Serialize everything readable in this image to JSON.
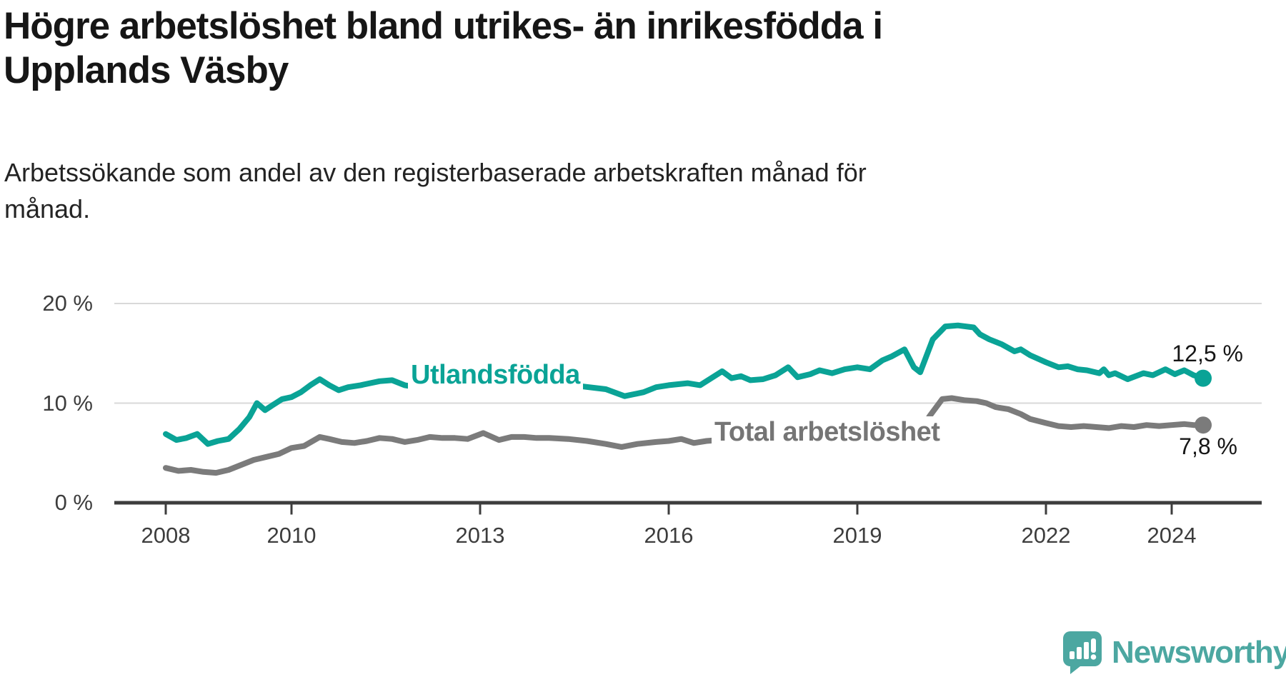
{
  "chart_data": {
    "type": "line",
    "title": "Högre arbetslöshet bland utrikes- än inrikesfödda i\nUpplands Väsby",
    "subtitle": "Arbetssökande som andel av den registerbaserade arbetskraften månad för\nmånad.",
    "grid": "horizontal",
    "legend_position": "inline-labels-on-lines",
    "x_axis": {
      "range": [
        2007.2,
        2025.4
      ],
      "ticks": [
        {
          "value": 2008,
          "label": "2008"
        },
        {
          "value": 2010,
          "label": "2010"
        },
        {
          "value": 2013,
          "label": "2013"
        },
        {
          "value": 2016,
          "label": "2016"
        },
        {
          "value": 2019,
          "label": "2019"
        },
        {
          "value": 2022,
          "label": "2022"
        },
        {
          "value": 2024,
          "label": "2024"
        }
      ]
    },
    "y_axis": {
      "unit": "%",
      "range": [
        0,
        22
      ],
      "gridlines": [
        10,
        20
      ],
      "ticks": [
        {
          "value": 20,
          "label": "20 %"
        },
        {
          "value": 10,
          "label": "10 %"
        },
        {
          "value": 0,
          "label": "0 %"
        }
      ]
    },
    "colors": {
      "axis": "#3d3d3d",
      "gridline": "#d9d9d9",
      "tick_text": "#3d3d3d"
    },
    "series": [
      {
        "id": "utlandsfodda",
        "name": "Utlandsfödda",
        "color": "#0aa396",
        "end_value": 12.5,
        "end_label": "12,5 %",
        "points": [
          [
            2008.0,
            6.9
          ],
          [
            2008.17,
            6.3
          ],
          [
            2008.33,
            6.5
          ],
          [
            2008.5,
            6.9
          ],
          [
            2008.67,
            5.9
          ],
          [
            2008.83,
            6.2
          ],
          [
            2009.0,
            6.4
          ],
          [
            2009.17,
            7.4
          ],
          [
            2009.33,
            8.6
          ],
          [
            2009.45,
            10.0
          ],
          [
            2009.58,
            9.3
          ],
          [
            2009.7,
            9.8
          ],
          [
            2009.85,
            10.4
          ],
          [
            2010.0,
            10.6
          ],
          [
            2010.15,
            11.1
          ],
          [
            2010.3,
            11.8
          ],
          [
            2010.45,
            12.4
          ],
          [
            2010.6,
            11.8
          ],
          [
            2010.75,
            11.3
          ],
          [
            2010.9,
            11.6
          ],
          [
            2011.1,
            11.8
          ],
          [
            2011.4,
            12.2
          ],
          [
            2011.6,
            12.3
          ],
          [
            2011.8,
            11.8
          ],
          [
            2012.0,
            11.6
          ],
          [
            2012.3,
            11.9
          ],
          [
            2012.6,
            12.1
          ],
          [
            2013.0,
            12.2
          ],
          [
            2013.4,
            12.4
          ],
          [
            2013.8,
            12.2
          ],
          [
            2014.2,
            12.0
          ],
          [
            2014.6,
            11.7
          ],
          [
            2015.0,
            11.4
          ],
          [
            2015.3,
            10.7
          ],
          [
            2015.6,
            11.1
          ],
          [
            2015.8,
            11.6
          ],
          [
            2016.0,
            11.8
          ],
          [
            2016.3,
            12.0
          ],
          [
            2016.5,
            11.8
          ],
          [
            2016.85,
            13.2
          ],
          [
            2017.0,
            12.5
          ],
          [
            2017.15,
            12.7
          ],
          [
            2017.3,
            12.3
          ],
          [
            2017.5,
            12.4
          ],
          [
            2017.7,
            12.8
          ],
          [
            2017.9,
            13.6
          ],
          [
            2018.05,
            12.6
          ],
          [
            2018.25,
            12.9
          ],
          [
            2018.4,
            13.3
          ],
          [
            2018.6,
            13.0
          ],
          [
            2018.8,
            13.4
          ],
          [
            2019.0,
            13.6
          ],
          [
            2019.2,
            13.4
          ],
          [
            2019.4,
            14.3
          ],
          [
            2019.55,
            14.7
          ],
          [
            2019.75,
            15.4
          ],
          [
            2019.9,
            13.6
          ],
          [
            2020.0,
            13.1
          ],
          [
            2020.2,
            16.4
          ],
          [
            2020.4,
            17.7
          ],
          [
            2020.6,
            17.8
          ],
          [
            2020.85,
            17.6
          ],
          [
            2020.95,
            16.9
          ],
          [
            2021.1,
            16.4
          ],
          [
            2021.3,
            15.9
          ],
          [
            2021.5,
            15.2
          ],
          [
            2021.6,
            15.4
          ],
          [
            2021.75,
            14.8
          ],
          [
            2022.0,
            14.1
          ],
          [
            2022.2,
            13.6
          ],
          [
            2022.35,
            13.7
          ],
          [
            2022.5,
            13.4
          ],
          [
            2022.65,
            13.3
          ],
          [
            2022.85,
            13.0
          ],
          [
            2022.92,
            13.4
          ],
          [
            2023.0,
            12.8
          ],
          [
            2023.1,
            13.0
          ],
          [
            2023.3,
            12.4
          ],
          [
            2023.55,
            13.0
          ],
          [
            2023.7,
            12.8
          ],
          [
            2023.9,
            13.4
          ],
          [
            2024.05,
            12.9
          ],
          [
            2024.2,
            13.3
          ],
          [
            2024.35,
            12.8
          ],
          [
            2024.5,
            12.5
          ]
        ]
      },
      {
        "id": "total",
        "name": "Total arbetslöshet",
        "color": "#7b7b7b",
        "end_value": 7.8,
        "end_label": "7,8 %",
        "points": [
          [
            2008.0,
            3.5
          ],
          [
            2008.2,
            3.2
          ],
          [
            2008.4,
            3.3
          ],
          [
            2008.6,
            3.1
          ],
          [
            2008.8,
            3.0
          ],
          [
            2009.0,
            3.3
          ],
          [
            2009.2,
            3.8
          ],
          [
            2009.4,
            4.3
          ],
          [
            2009.6,
            4.6
          ],
          [
            2009.8,
            4.9
          ],
          [
            2010.0,
            5.5
          ],
          [
            2010.2,
            5.7
          ],
          [
            2010.45,
            6.6
          ],
          [
            2010.6,
            6.4
          ],
          [
            2010.8,
            6.1
          ],
          [
            2011.0,
            6.0
          ],
          [
            2011.2,
            6.2
          ],
          [
            2011.4,
            6.5
          ],
          [
            2011.6,
            6.4
          ],
          [
            2011.8,
            6.1
          ],
          [
            2012.0,
            6.3
          ],
          [
            2012.2,
            6.6
          ],
          [
            2012.4,
            6.5
          ],
          [
            2012.6,
            6.5
          ],
          [
            2012.8,
            6.4
          ],
          [
            2013.05,
            7.0
          ],
          [
            2013.3,
            6.3
          ],
          [
            2013.5,
            6.6
          ],
          [
            2013.7,
            6.6
          ],
          [
            2013.9,
            6.5
          ],
          [
            2014.1,
            6.5
          ],
          [
            2014.4,
            6.4
          ],
          [
            2014.7,
            6.2
          ],
          [
            2015.0,
            5.9
          ],
          [
            2015.25,
            5.6
          ],
          [
            2015.5,
            5.9
          ],
          [
            2015.8,
            6.1
          ],
          [
            2016.0,
            6.2
          ],
          [
            2016.2,
            6.4
          ],
          [
            2016.4,
            6.0
          ],
          [
            2016.6,
            6.2
          ],
          [
            2016.8,
            6.3
          ],
          [
            2017.0,
            6.4
          ],
          [
            2017.3,
            6.5
          ],
          [
            2017.6,
            6.4
          ],
          [
            2018.0,
            6.4
          ],
          [
            2018.4,
            6.5
          ],
          [
            2018.8,
            6.6
          ],
          [
            2019.2,
            6.8
          ],
          [
            2019.5,
            7.0
          ],
          [
            2019.8,
            6.9
          ],
          [
            2020.0,
            7.2
          ],
          [
            2020.15,
            8.7
          ],
          [
            2020.35,
            10.4
          ],
          [
            2020.5,
            10.5
          ],
          [
            2020.7,
            10.3
          ],
          [
            2020.9,
            10.2
          ],
          [
            2021.05,
            10.0
          ],
          [
            2021.2,
            9.6
          ],
          [
            2021.4,
            9.4
          ],
          [
            2021.6,
            8.9
          ],
          [
            2021.75,
            8.4
          ],
          [
            2022.0,
            8.0
          ],
          [
            2022.2,
            7.7
          ],
          [
            2022.4,
            7.6
          ],
          [
            2022.6,
            7.7
          ],
          [
            2022.8,
            7.6
          ],
          [
            2023.0,
            7.5
          ],
          [
            2023.2,
            7.7
          ],
          [
            2023.4,
            7.6
          ],
          [
            2023.6,
            7.8
          ],
          [
            2023.8,
            7.7
          ],
          [
            2024.0,
            7.8
          ],
          [
            2024.2,
            7.9
          ],
          [
            2024.35,
            7.8
          ],
          [
            2024.5,
            7.8
          ]
        ]
      }
    ]
  },
  "branding": {
    "logo_text": "Newsworthy",
    "logo_color": "#4ca7a1"
  }
}
